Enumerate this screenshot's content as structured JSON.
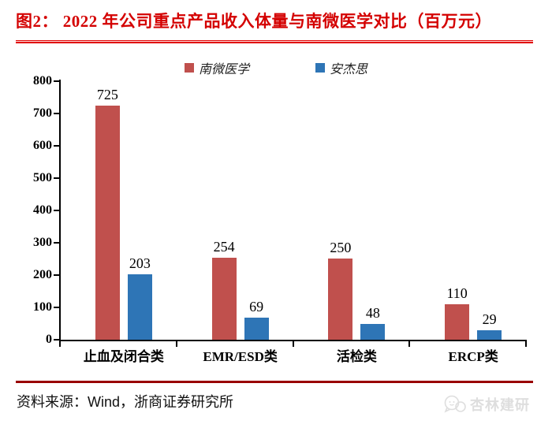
{
  "figure": {
    "title": "图2： 2022 年公司重点产品收入体量与南微医学对比（百万元）",
    "source": "资料来源：Wind，浙商证券研究所",
    "watermark": "杏林建研",
    "watermark_icon": "chat-bubbles-icon"
  },
  "colors": {
    "title_red": "#d40000",
    "header_line_red": "#e00000",
    "footer_line_dark_red": "#990000",
    "series_red": "#c0504d",
    "series_blue": "#2e75b6",
    "axis": "#000000",
    "watermark_gray": "#dedede"
  },
  "chart_data": {
    "type": "bar",
    "title": "2022 年公司重点产品收入体量与南微医学对比（百万元）",
    "categories": [
      "止血及闭合类",
      "EMR/ESD类",
      "活检类",
      "ERCP类"
    ],
    "series": [
      {
        "name": "南微医学",
        "color": "#c0504d",
        "values": [
          725,
          254,
          250,
          110
        ]
      },
      {
        "name": "安杰思",
        "color": "#2e75b6",
        "values": [
          203,
          69,
          48,
          29
        ]
      }
    ],
    "xlabel": "",
    "ylabel": "",
    "ylim": [
      0,
      800
    ],
    "y_ticks": [
      0,
      100,
      200,
      300,
      400,
      500,
      600,
      700,
      800
    ],
    "grid": false,
    "legend_position": "top",
    "data_labels": true
  }
}
